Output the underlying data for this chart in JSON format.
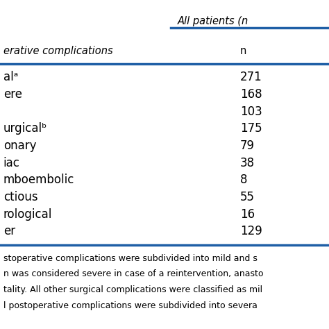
{
  "header_group": "All patients (n",
  "col_header": "n",
  "rows": [
    {
      "label": "alᵃ",
      "value": "271"
    },
    {
      "label": "ere",
      "value": "168"
    },
    {
      "label": "",
      "value": "103"
    },
    {
      "label": "urgicalᵇ",
      "value": "175"
    },
    {
      "label": "onary",
      "value": "79"
    },
    {
      "label": "iac",
      "value": "38"
    },
    {
      "label": "mboembolic",
      "value": "8"
    },
    {
      "label": "ctious",
      "value": "55"
    },
    {
      "label": "rological",
      "value": "16"
    },
    {
      "label": "er",
      "value": "129"
    }
  ],
  "col_label": "erative complications",
  "footnotes": [
    "stoperative complications were subdivided into mild and s",
    "n was considered severe in case of a reintervention, anasto",
    "tality. All other surgical complications were classified as mil",
    "l postoperative complications were subdivided into severa"
  ],
  "blue_color": "#1F5FA6",
  "text_color": "#000000",
  "background_color": "#FFFFFF",
  "font_size_header": 10.5,
  "font_size_data": 12,
  "font_size_footnote": 9
}
